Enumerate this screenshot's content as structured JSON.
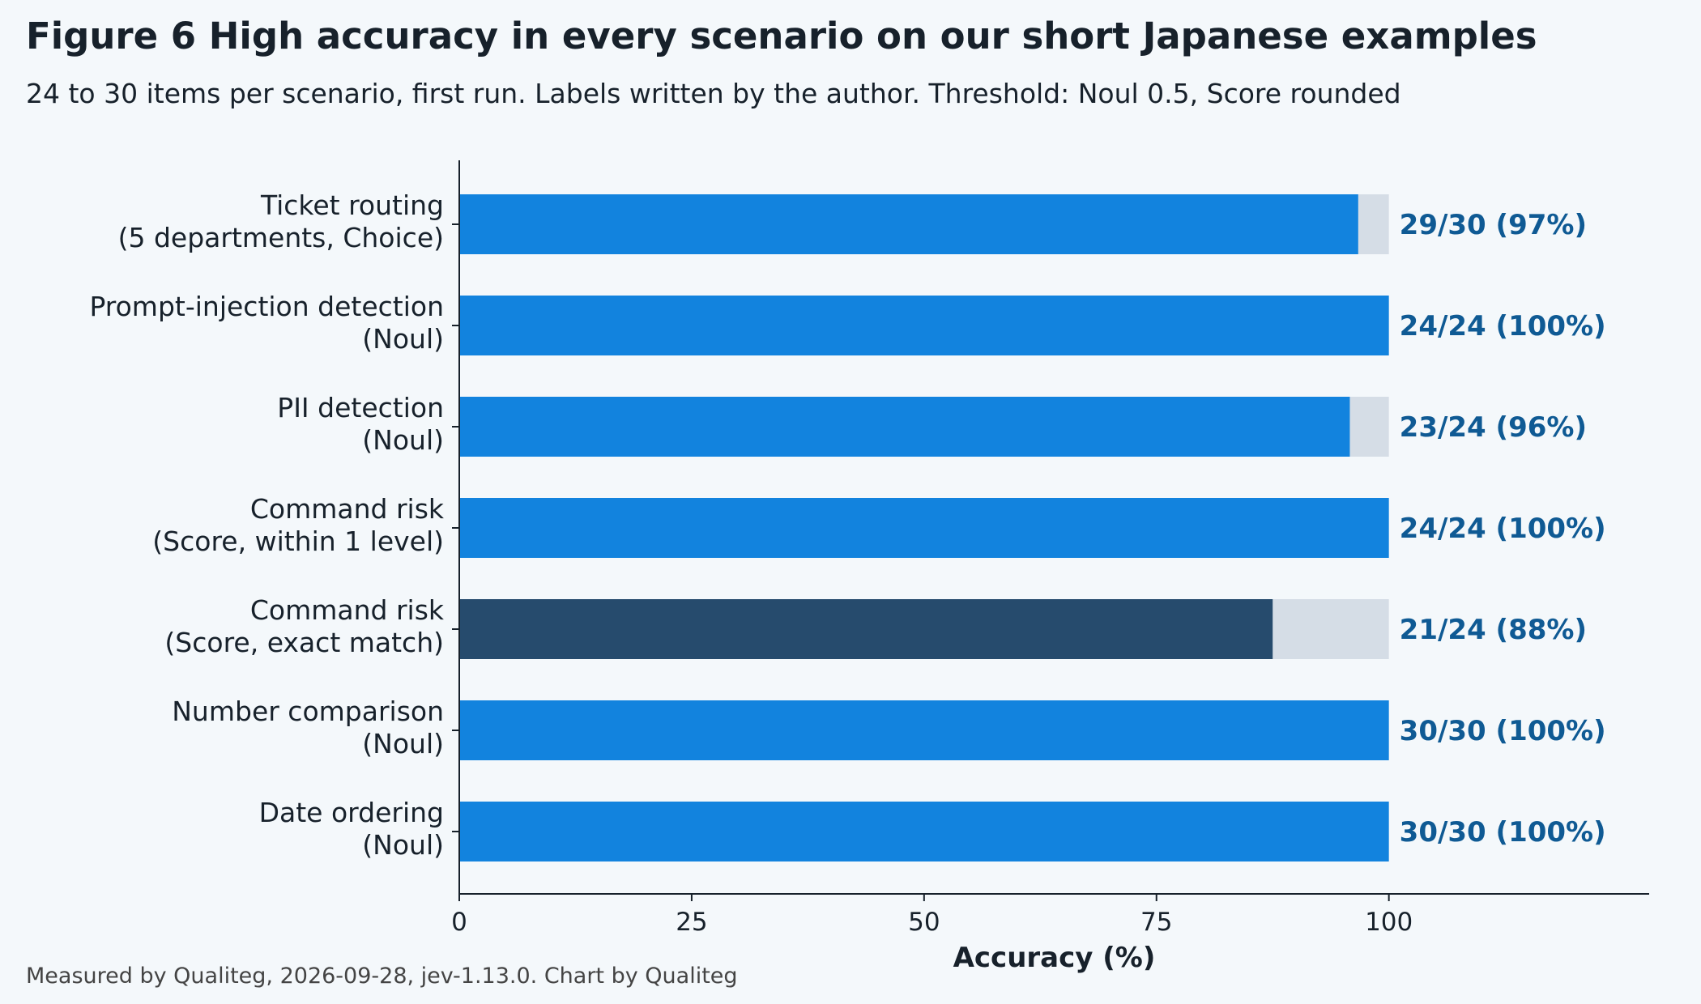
{
  "title": "Figure 6  High accuracy in every scenario on our short Japanese examples",
  "subtitle": "24 to 30 items per scenario, first run. Labels written by the author. Threshold: Noul 0.5, Score rounded",
  "footer": "Measured by Qualiteg, 2026-09-28, jev-1.13.0. Chart by Qualiteg",
  "colors": {
    "bar": "#1283de",
    "bar_highlight": "#264b6d",
    "track": "#d5dde6",
    "value_label": "#0f5a94",
    "axis": "#17212b"
  },
  "chart_data": {
    "type": "bar",
    "orientation": "horizontal",
    "xlabel": "Accuracy (%)",
    "xlim": [
      0,
      128
    ],
    "xticks": [
      0,
      25,
      50,
      75,
      100
    ],
    "grid": false,
    "categories": [
      [
        "Ticket routing",
        "(5 departments, Choice)"
      ],
      [
        "Prompt-injection detection",
        "(Noul)"
      ],
      [
        "PII detection",
        "(Noul)"
      ],
      [
        "Command risk",
        "(Score, within 1 level)"
      ],
      [
        "Command risk",
        "(Score, exact match)"
      ],
      [
        "Number comparison",
        "(Noul)"
      ],
      [
        "Date ordering",
        "(Noul)"
      ]
    ],
    "values": [
      96.7,
      100,
      95.8,
      100,
      87.5,
      100,
      100
    ],
    "max": 100,
    "highlight_index": 4,
    "data_labels": [
      "29/30 (97%)",
      "24/24 (100%)",
      "23/24 (96%)",
      "24/24 (100%)",
      "21/24 (88%)",
      "30/30 (100%)",
      "30/30 (100%)"
    ]
  }
}
